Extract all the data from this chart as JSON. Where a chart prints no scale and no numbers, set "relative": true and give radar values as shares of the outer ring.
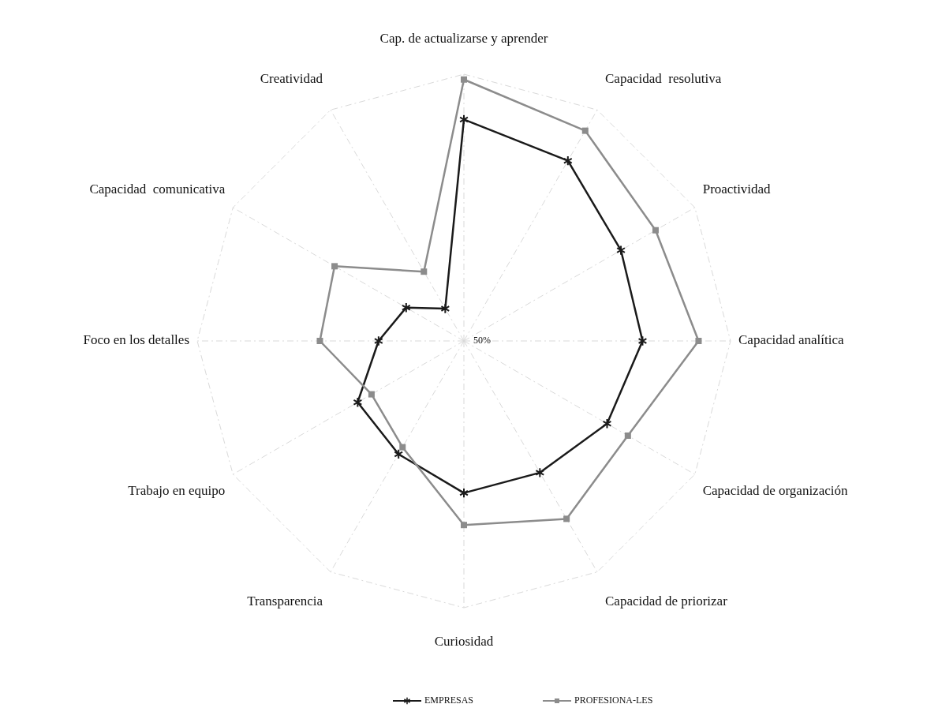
{
  "chart_data": {
    "type": "radar",
    "relative": true,
    "categories": [
      "Cap. de actualizarse y aprender",
      "Capacidad  resolutiva",
      "Proactividad",
      "Capacidad analítica",
      "Capacidad de organización",
      "Capacidad de priorizar",
      "Curiosidad",
      "Transparencia",
      "Trabajo en equipo",
      "Foco en los detalles",
      "Capacidad  comunicativa",
      "Creatividad"
    ],
    "series": [
      {
        "name": "EMPRESAS",
        "color": "#1a1a1a",
        "marker": "star",
        "values": [
          0.83,
          0.78,
          0.68,
          0.67,
          0.62,
          0.57,
          0.57,
          0.49,
          0.46,
          0.32,
          0.25,
          0.14
        ]
      },
      {
        "name": "PROFESIONA-LES",
        "color": "#8c8c8c",
        "marker": "square",
        "values": [
          0.98,
          0.91,
          0.83,
          0.88,
          0.71,
          0.77,
          0.69,
          0.46,
          0.4,
          0.54,
          0.56,
          0.3
        ]
      }
    ],
    "annotations": [
      "50%"
    ],
    "grid": true,
    "legend": "bottom",
    "line_style": "solid"
  }
}
